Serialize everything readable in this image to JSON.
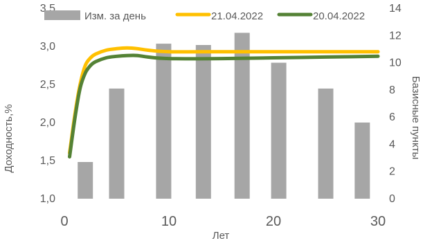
{
  "chart_data": {
    "type": "bar+line",
    "xlabel": "Лет",
    "ylabel_left": "Доходность,%",
    "ylabel_right": "Базисные пункты",
    "x_ticks": [
      "0",
      "10",
      "20",
      "30"
    ],
    "xlim": [
      0,
      30
    ],
    "yleft_ticks": [
      "1,0",
      "1,5",
      "2,0",
      "2,5",
      "3,0",
      "3,5"
    ],
    "yleft_lim": [
      1.0,
      3.5
    ],
    "yright_ticks": [
      "0",
      "2",
      "4",
      "6",
      "8",
      "10",
      "12",
      "14"
    ],
    "yright_lim": [
      0,
      14
    ],
    "grid": false,
    "legend_position": "top",
    "bars": {
      "name": "Изм. за день",
      "color": "#a6a6a6",
      "x": [
        2,
        5,
        9.5,
        13.3,
        17,
        20.5,
        25,
        28.5
      ],
      "values": [
        2.7,
        8.1,
        11.4,
        11.3,
        12.2,
        10.0,
        8.1,
        5.6
      ]
    },
    "series": [
      {
        "name": "21.04.2022",
        "color": "#ffc000",
        "x": [
          0.5,
          1,
          1.5,
          2,
          2.5,
          3,
          4,
          5,
          6,
          7,
          8,
          10,
          15,
          20,
          25,
          30
        ],
        "y": [
          1.6,
          2.1,
          2.5,
          2.75,
          2.85,
          2.9,
          2.95,
          2.97,
          2.98,
          2.97,
          2.95,
          2.93,
          2.93,
          2.93,
          2.93,
          2.93
        ]
      },
      {
        "name": "20.04.2022",
        "color": "#548235",
        "x": [
          0.5,
          1,
          1.5,
          2,
          2.5,
          3,
          4,
          5,
          6,
          7,
          8,
          10,
          15,
          20,
          25,
          30
        ],
        "y": [
          1.55,
          2.05,
          2.45,
          2.65,
          2.75,
          2.8,
          2.85,
          2.87,
          2.88,
          2.88,
          2.86,
          2.84,
          2.84,
          2.85,
          2.86,
          2.87
        ]
      }
    ]
  }
}
